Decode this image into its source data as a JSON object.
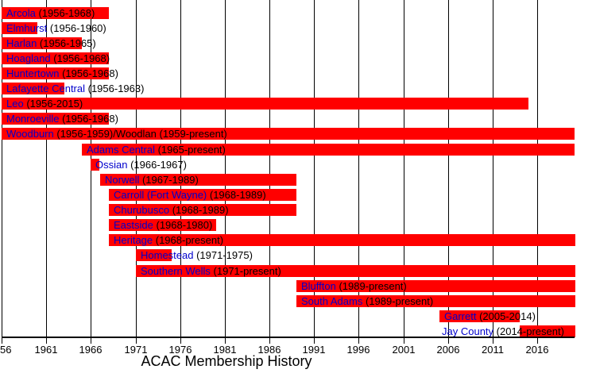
{
  "title": "ACAC Membership History",
  "colors": {
    "bar": "#ff0000",
    "school_link": "#0000cc",
    "year_text": "#000000",
    "gridline": "#000000",
    "background": "#ffffff"
  },
  "x_axis": {
    "tick_years": [
      1956,
      1961,
      1966,
      1971,
      1976,
      1981,
      1986,
      1991,
      1996,
      2001,
      2006,
      2011,
      2016
    ],
    "tick_labels": [
      "56",
      "1961",
      "1966",
      "1971",
      "1976",
      "1981",
      "1986",
      "1991",
      "1996",
      "2001",
      "2006",
      "2011",
      "2016"
    ],
    "gridlines_every_years": 5
  },
  "chart_data": {
    "type": "bar",
    "subtype": "horizontal-timeline-gantt",
    "title": "ACAC Membership History",
    "xlabel": "",
    "ylabel": "",
    "x_range": [
      1956,
      2020
    ],
    "grid": true,
    "series": [
      {
        "name": "Arcola",
        "detail": "(1956-1968)",
        "start": 1956,
        "end": 1968
      },
      {
        "name": "Elmhurst",
        "detail": "(1956-1960)",
        "start": 1956,
        "end": 1960
      },
      {
        "name": "Harlan",
        "detail": "(1956-1965)",
        "start": 1956,
        "end": 1965
      },
      {
        "name": "Hoagland",
        "detail": "(1956-1968)",
        "start": 1956,
        "end": 1968
      },
      {
        "name": "Huntertown",
        "detail": "(1956-1968)",
        "start": 1956,
        "end": 1968
      },
      {
        "name": "Lafayette Central",
        "detail": "(1956-1963)",
        "start": 1956,
        "end": 1963
      },
      {
        "name": "Leo",
        "detail": "(1956-2015)",
        "start": 1956,
        "end": 2015
      },
      {
        "name": "Monroeville",
        "detail": "(1956-1968)",
        "start": 1956,
        "end": 1968
      },
      {
        "name": "Woodburn",
        "detail": "(1956-1959)/Woodlan (1959-present)",
        "start": 1956,
        "end": "present"
      },
      {
        "name": "Adams Central",
        "detail": "(1965-present)",
        "start": 1965,
        "end": "present"
      },
      {
        "name": "Ossian",
        "detail": "(1966-1967)",
        "start": 1966,
        "end": 1967
      },
      {
        "name": "Norwell",
        "detail": "(1967-1989)",
        "start": 1967,
        "end": 1989
      },
      {
        "name": "Carroll (Fort Wayne)",
        "detail": "(1968-1989)",
        "start": 1968,
        "end": 1989
      },
      {
        "name": "Churubusco",
        "detail": "(1968-1989)",
        "start": 1968,
        "end": 1989
      },
      {
        "name": "Eastside",
        "detail": "(1968-1980)",
        "start": 1968,
        "end": 1980
      },
      {
        "name": "Heritage",
        "detail": "(1968-present)",
        "start": 1968,
        "end": "present"
      },
      {
        "name": "Homestead",
        "detail": "(1971-1975)",
        "start": 1971,
        "end": 1975
      },
      {
        "name": "Southern Wells",
        "detail": "(1971-present)",
        "start": 1971,
        "end": "present"
      },
      {
        "name": "Bluffton",
        "detail": "(1989-present)",
        "start": 1989,
        "end": "present"
      },
      {
        "name": "South Adams",
        "detail": "(1989-present)",
        "start": 1989,
        "end": "present"
      },
      {
        "name": "Garrett",
        "detail": "(2005-2014)",
        "start": 2005,
        "end": 2014
      },
      {
        "name": "Jay County",
        "detail": "(2014-present)",
        "start": 2014,
        "end": "present",
        "label_year": 2005.3
      }
    ]
  }
}
